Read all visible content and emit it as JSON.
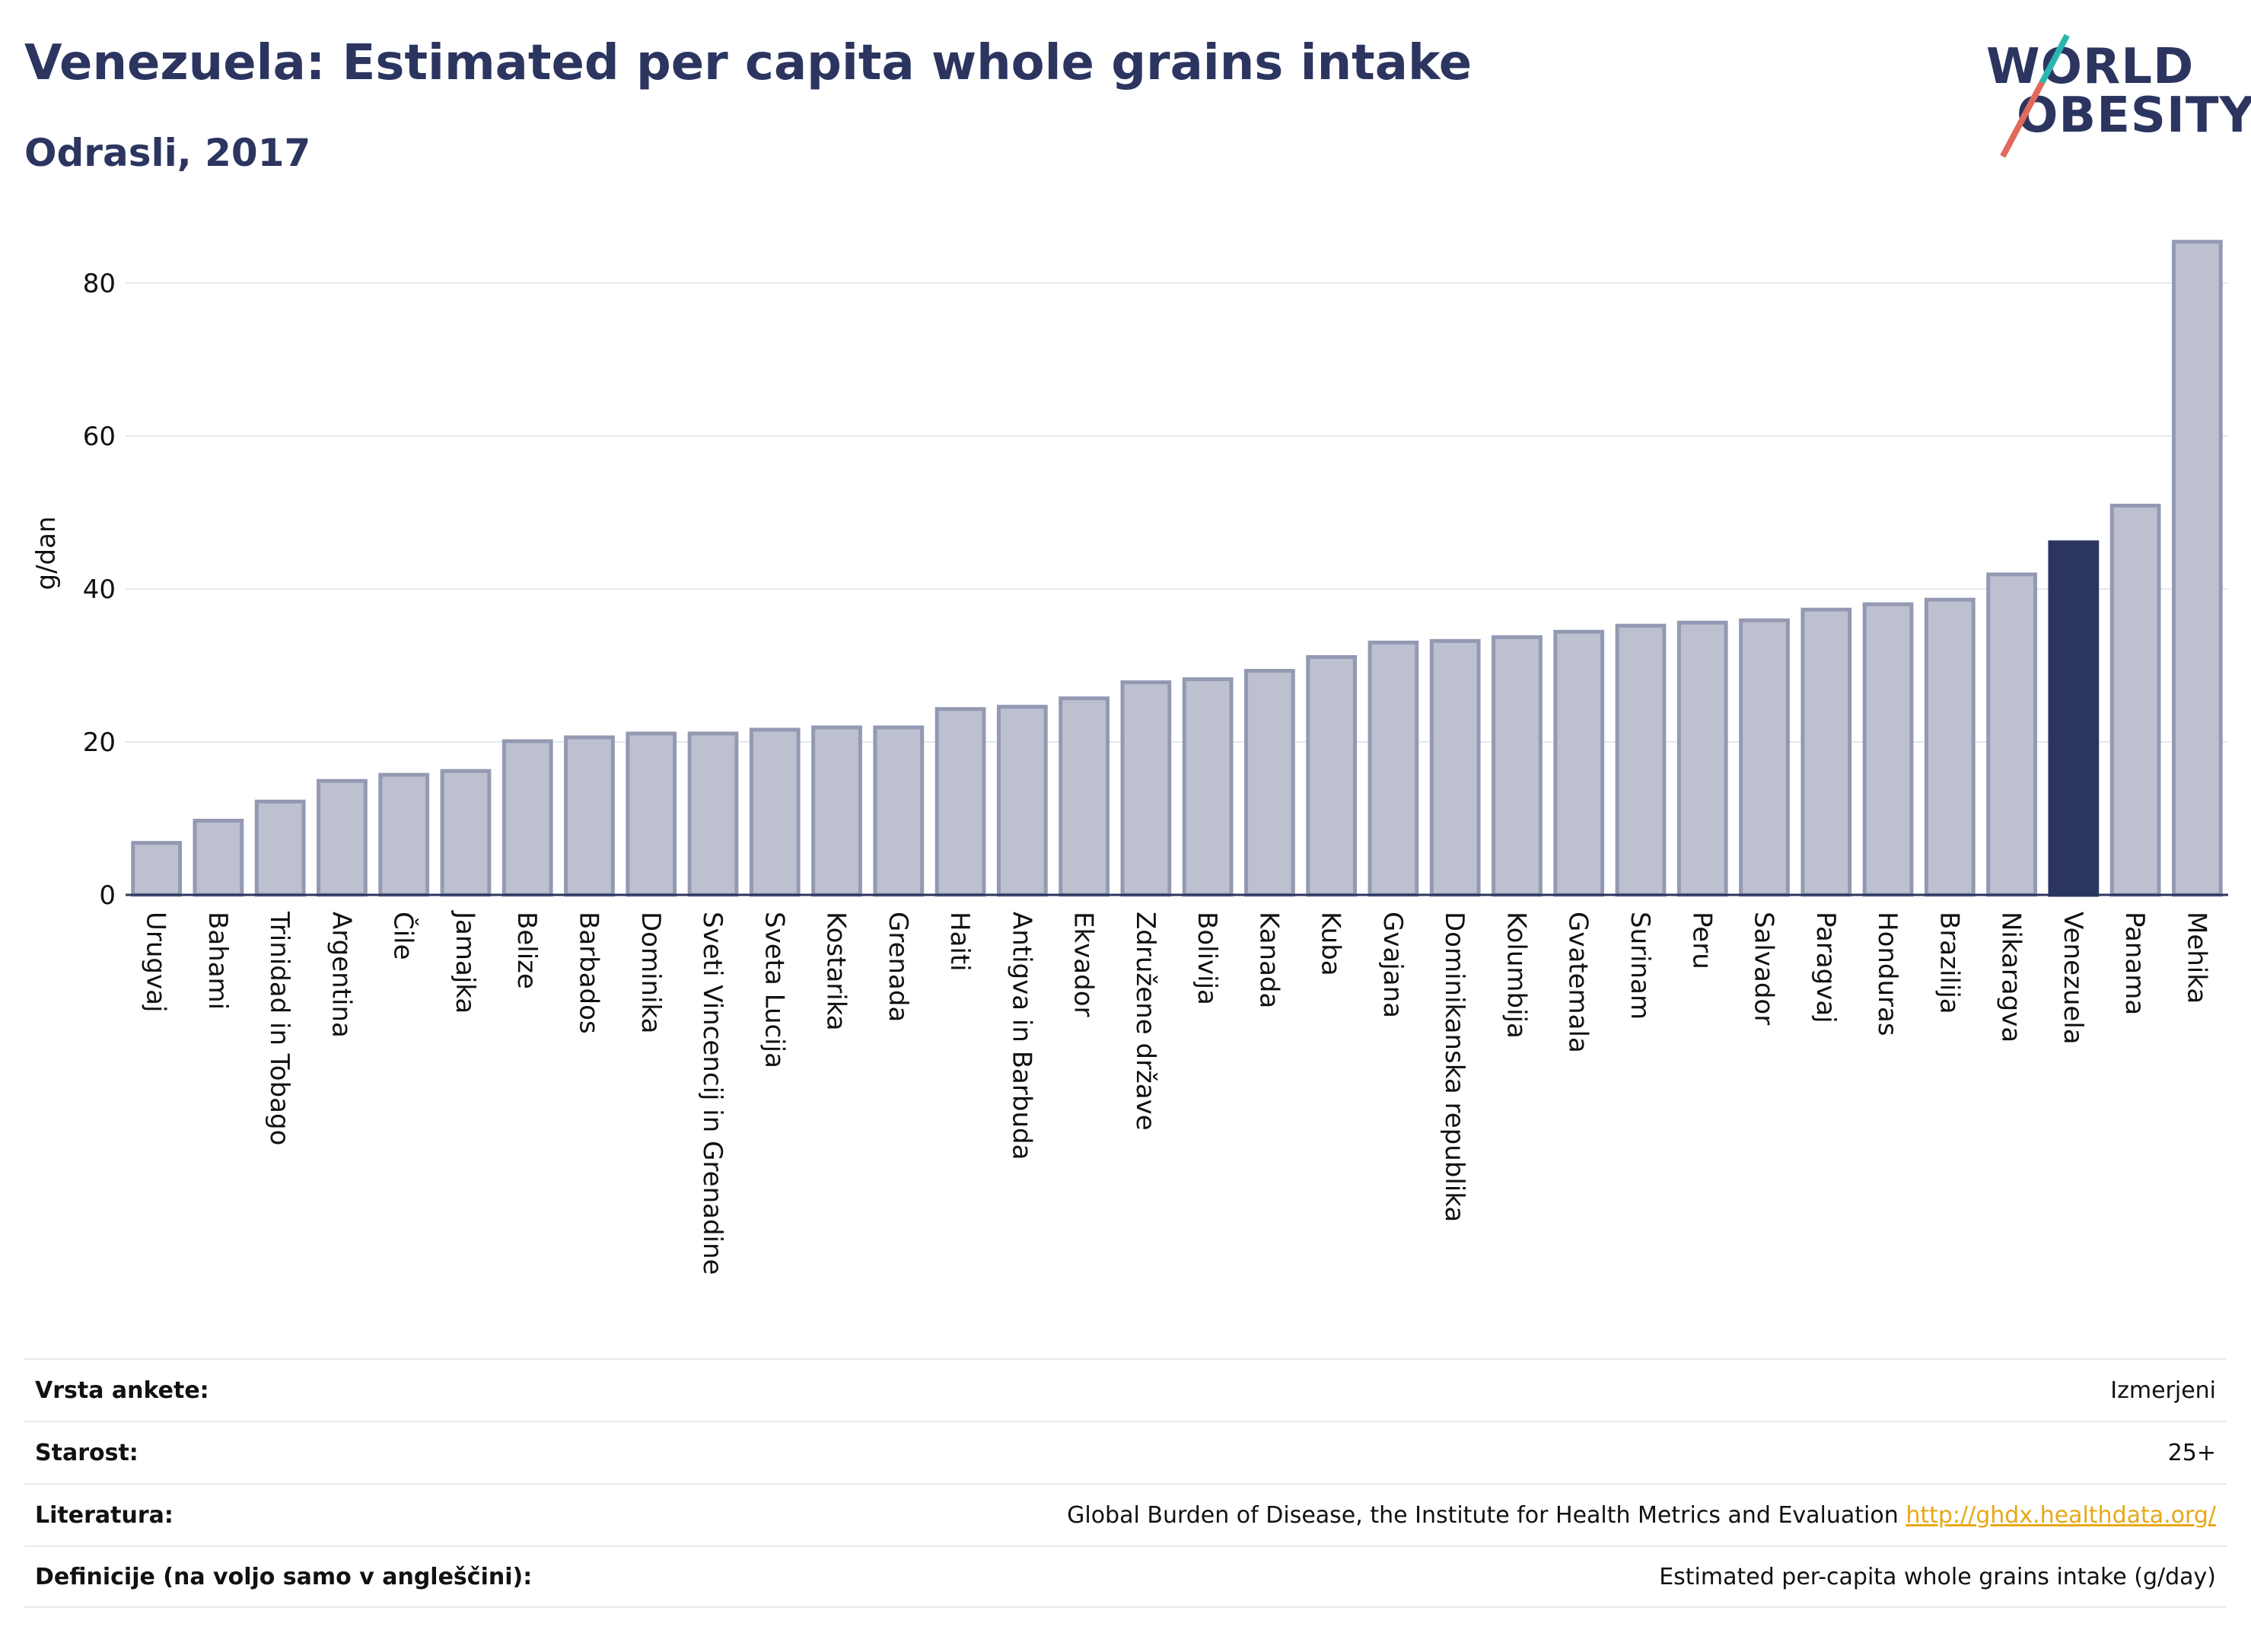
{
  "title": "Venezuela: Estimated per capita whole grains intake",
  "subtitle": "Odrasli, 2017",
  "logo": {
    "line1": "WORLD",
    "line2": "OBESITY"
  },
  "colors": {
    "bar": "#bcc0cf",
    "bar_stroke": "#9499b3",
    "highlight": "#2c3560",
    "grid": "#e6e8ef",
    "link": "#e8a816"
  },
  "chart_data": {
    "type": "bar",
    "ylabel": "g/dan",
    "xlabel": "",
    "ylim": [
      0,
      88
    ],
    "yticks": [
      0,
      20,
      40,
      60,
      80
    ],
    "grid": true,
    "highlight": "Venezuela",
    "categories": [
      "Urugvaj",
      "Bahami",
      "Trinidad in Tobago",
      "Argentina",
      "Čile",
      "Jamajka",
      "Belize",
      "Barbados",
      "Dominika",
      "Sveti Vincencij in Grenadine",
      "Sveta Lucija",
      "Kostarika",
      "Grenada",
      "Haiti",
      "Antigva in Barbuda",
      "Ekvador",
      "Združene države",
      "Bolivija",
      "Kanada",
      "Kuba",
      "Gvajana",
      "Dominikanska republika",
      "Kolumbija",
      "Gvatemala",
      "Surinam",
      "Peru",
      "Salvador",
      "Paragvaj",
      "Honduras",
      "Brazilija",
      "Nikaragva",
      "Venezuela",
      "Panama",
      "Mehika"
    ],
    "values": [
      6.8,
      9.7,
      12.2,
      14.9,
      15.7,
      16.2,
      20.1,
      20.6,
      21.1,
      21.1,
      21.6,
      21.9,
      21.9,
      24.3,
      24.6,
      25.7,
      27.8,
      28.2,
      29.3,
      31.1,
      33.0,
      33.2,
      33.7,
      34.4,
      35.2,
      35.6,
      35.9,
      37.3,
      38.0,
      38.6,
      41.9,
      46.1,
      50.9,
      85.4
    ]
  },
  "meta": [
    {
      "label": "Vrsta ankete:",
      "value": "Izmerjeni",
      "link": ""
    },
    {
      "label": "Starost:",
      "value": "25+",
      "link": ""
    },
    {
      "label": "Literatura:",
      "value": "Global Burden of Disease, the Institute for Health Metrics and Evaluation",
      "link": "http://ghdx.healthdata.org/"
    },
    {
      "label": "Definicije (na voljo samo v angleščini):",
      "value": "Estimated per-capita whole grains intake (g/day)",
      "link": ""
    }
  ]
}
